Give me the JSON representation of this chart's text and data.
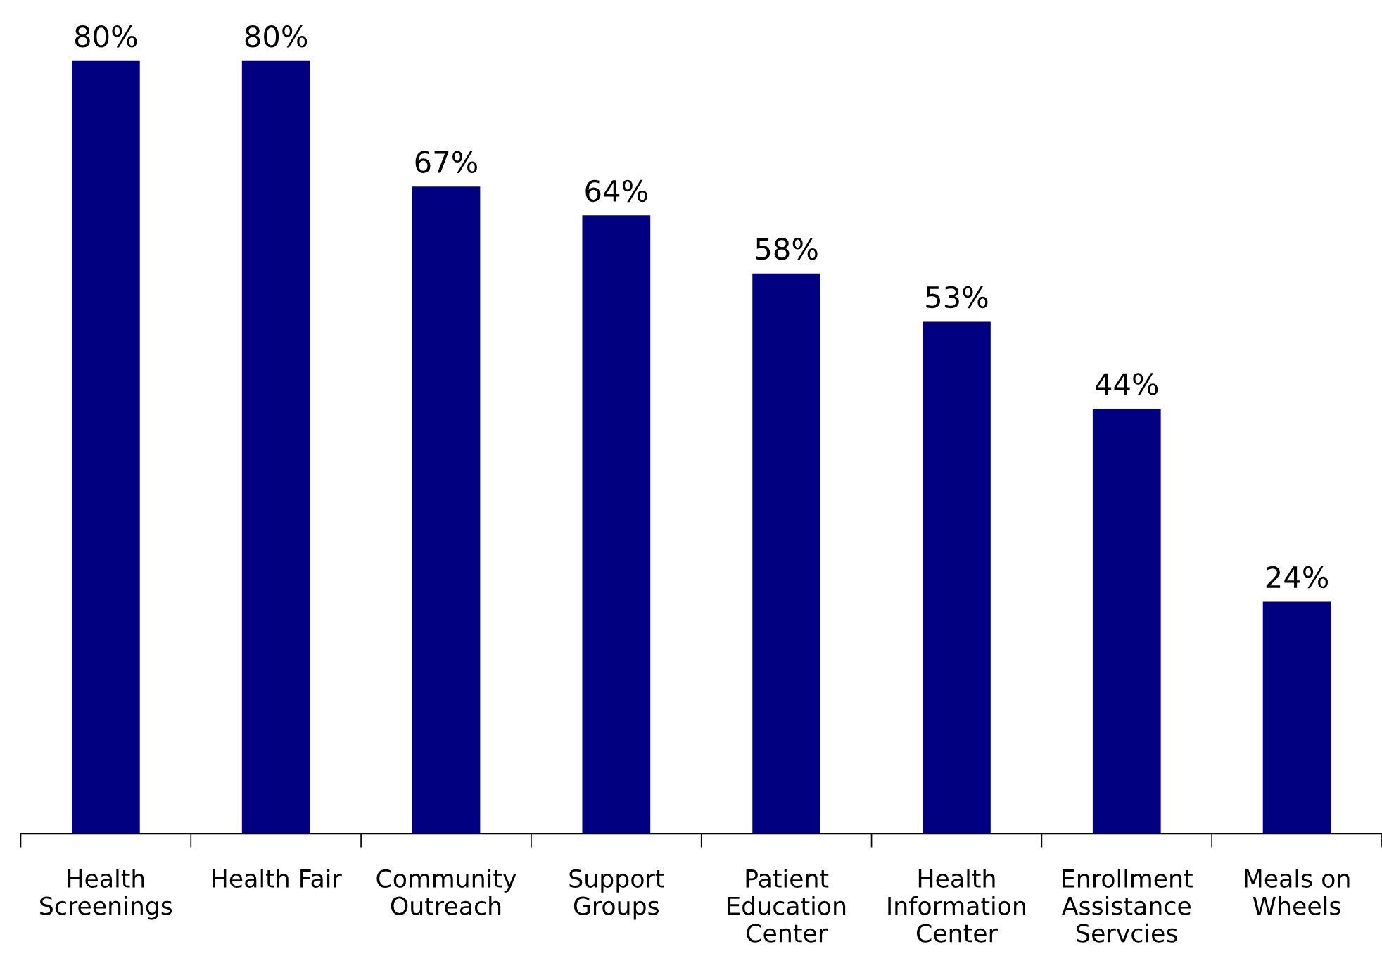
{
  "chart_data": {
    "type": "bar",
    "categories": [
      "Health\nScreenings",
      "Health Fair",
      "Community\nOutreach",
      "Support\nGroups",
      "Patient\nEducation\nCenter",
      "Health\nInformation\nCenter",
      "Enrollment\nAssistance\nServcies",
      "Meals on\nWheels"
    ],
    "values": [
      80,
      80,
      67,
      64,
      58,
      53,
      44,
      24
    ],
    "value_labels": [
      "80%",
      "80%",
      "67%",
      "64%",
      "58%",
      "53%",
      "44%",
      "24%"
    ],
    "color": "#000080",
    "grid": false,
    "legend": false,
    "tick_labels": "x"
  }
}
